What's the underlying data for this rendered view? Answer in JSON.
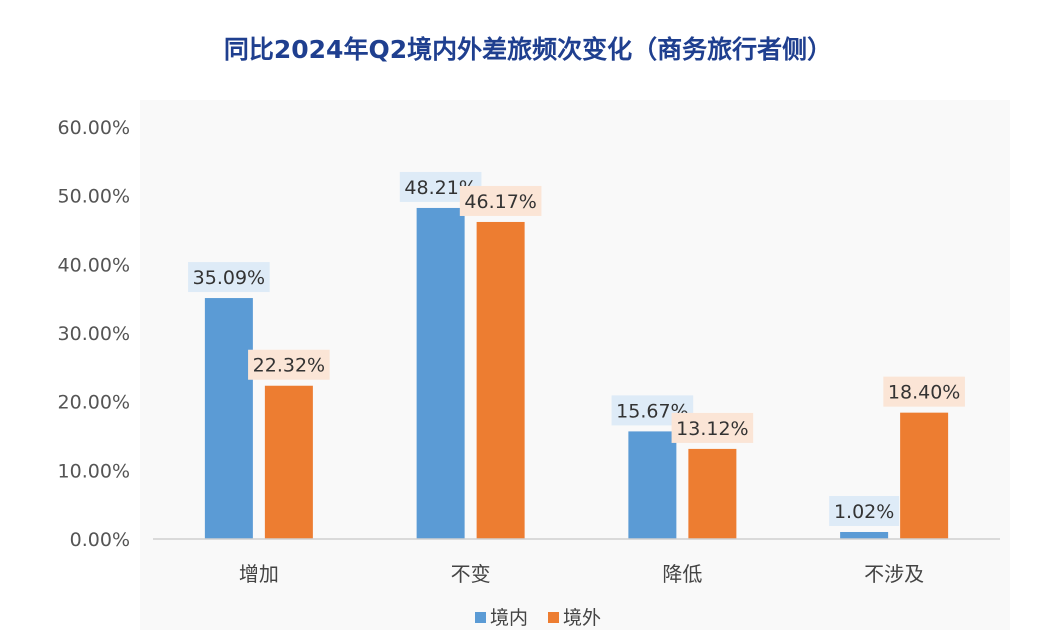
{
  "chart_data": {
    "type": "bar",
    "title": "同比2024年Q2境内外差旅频次变化（商务旅行者侧）",
    "categories": [
      "增加",
      "不变",
      "降低",
      "不涉及"
    ],
    "series": [
      {
        "name": "境内",
        "values": [
          35.09,
          48.21,
          15.67,
          1.02
        ],
        "labels": [
          "35.09%",
          "48.21%",
          "15.67%",
          "1.02%"
        ],
        "color": "#5b9bd5",
        "label_bg": "#deebf7"
      },
      {
        "name": "境外",
        "values": [
          22.32,
          46.17,
          13.12,
          18.4
        ],
        "labels": [
          "22.32%",
          "46.17%",
          "13.12%",
          "18.40%"
        ],
        "color": "#ed7d31",
        "label_bg": "#fbe5d6"
      }
    ],
    "y_ticks": [
      "0.00%",
      "10.00%",
      "20.00%",
      "30.00%",
      "40.00%",
      "50.00%",
      "60.00%"
    ],
    "ylim": [
      0,
      60
    ],
    "grid": false,
    "legend": "bottom",
    "plot_background": "#f9f9f9"
  }
}
